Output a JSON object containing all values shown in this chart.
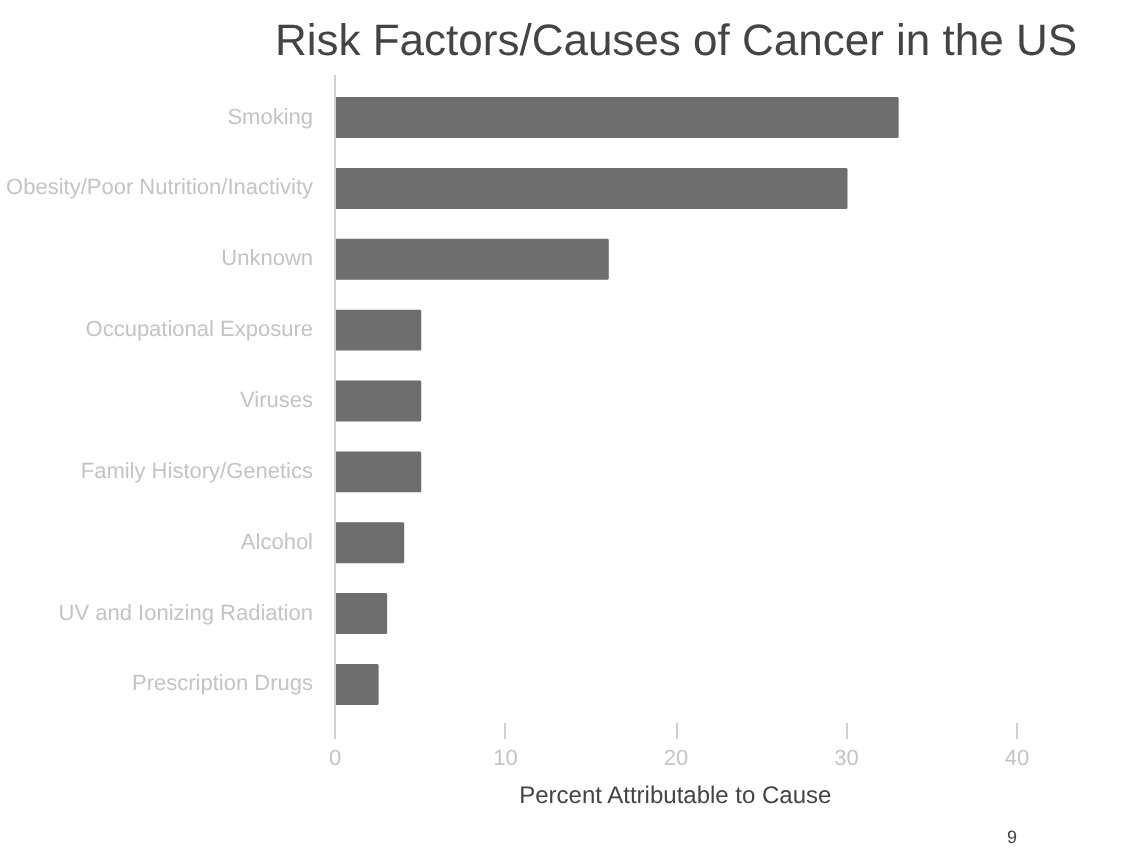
{
  "chart_data": {
    "type": "bar",
    "orientation": "horizontal",
    "title": "Risk Factors/Causes of Cancer in the US",
    "xlabel": "Percent Attributable to Cause",
    "categories": [
      "Smoking",
      "Obesity/Poor Nutrition/Inactivity",
      "Unknown",
      "Occupational Exposure",
      "Viruses",
      "Family History/Genetics",
      "Alcohol",
      "UV and Ionizing Radiation",
      "Prescription Drugs"
    ],
    "values": [
      33,
      30,
      16,
      5,
      5,
      5,
      4,
      3,
      2.5
    ],
    "color": "#6e6e6e",
    "xlim": [
      0,
      40
    ],
    "xticks": [
      0,
      10,
      20,
      30,
      40
    ],
    "grid": false,
    "annotations": [
      "9"
    ]
  }
}
